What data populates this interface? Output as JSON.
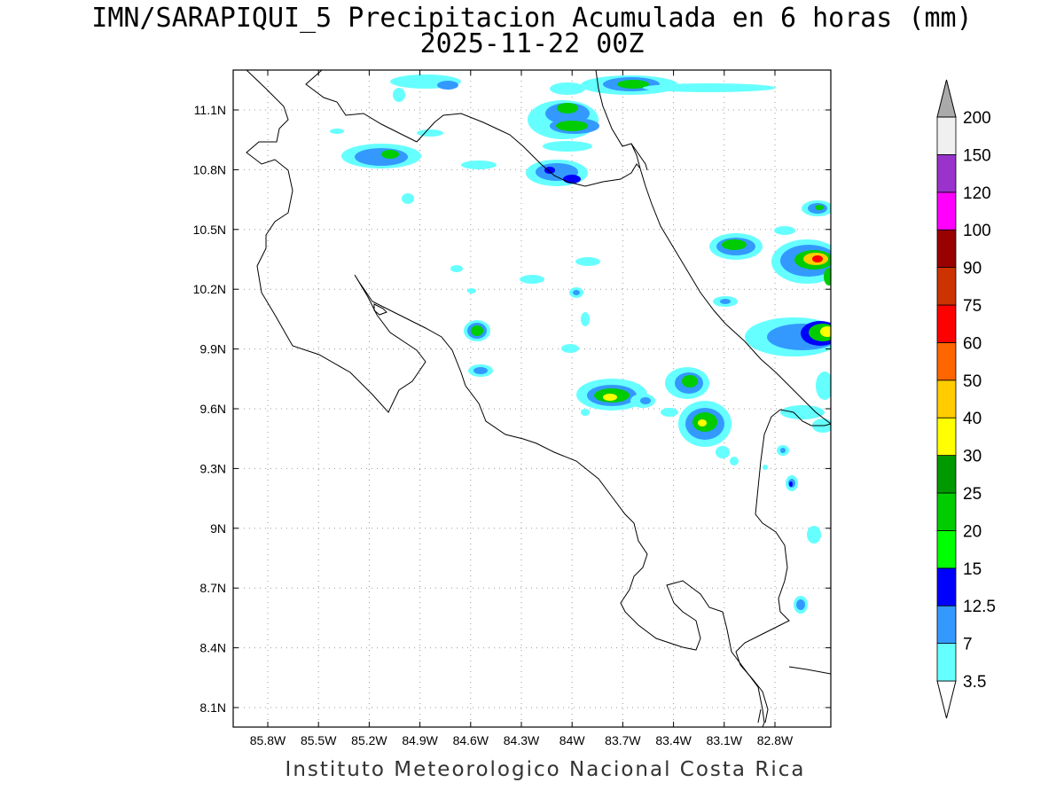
{
  "title_line1": "IMN/SARAPIQUI_5 Precipitacion Acumulada en 6 horas (mm)",
  "title_line2": "2025-11-22 00Z",
  "credit": "Instituto Meteorologico Nacional Costa Rica",
  "map": {
    "lon_range": [
      -86.0,
      -83.0
    ],
    "lat_range": [
      8.0,
      11.3
    ],
    "x_ticks": [
      {
        "value": -85.8,
        "label": "85.8W"
      },
      {
        "value": -85.5,
        "label": "85.5W"
      },
      {
        "value": -85.2,
        "label": "85.2W"
      },
      {
        "value": -84.9,
        "label": "84.9W"
      },
      {
        "value": -84.6,
        "label": "84.6W"
      },
      {
        "value": -84.3,
        "label": "84.3W"
      },
      {
        "value": -84.0,
        "label": "84W"
      },
      {
        "value": -83.7,
        "label": "83.7W"
      },
      {
        "value": -83.4,
        "label": "83.4W"
      },
      {
        "value": -83.1,
        "label": "83.1W"
      },
      {
        "value": -82.8,
        "label": "82.8W"
      }
    ],
    "y_ticks": [
      {
        "value": 8.1,
        "label": "8.1N"
      },
      {
        "value": 8.4,
        "label": "8.4N"
      },
      {
        "value": 8.7,
        "label": "8.7N"
      },
      {
        "value": 9.0,
        "label": "9N"
      },
      {
        "value": 9.3,
        "label": "9.3N"
      },
      {
        "value": 9.6,
        "label": "9.6N"
      },
      {
        "value": 9.9,
        "label": "9.9N"
      },
      {
        "value": 10.2,
        "label": "10.2N"
      },
      {
        "value": 10.5,
        "label": "10.5N"
      },
      {
        "value": 10.8,
        "label": "10.8N"
      },
      {
        "value": 11.1,
        "label": "11.1N"
      }
    ],
    "grid": "dotted"
  },
  "colorbar": {
    "levels": [
      {
        "label": "3.5",
        "color": "#66ffff"
      },
      {
        "label": "7",
        "color": "#3399ff"
      },
      {
        "label": "12.5",
        "color": "#0000ff"
      },
      {
        "label": "15",
        "color": "#00ff00"
      },
      {
        "label": "20",
        "color": "#00cc00"
      },
      {
        "label": "25",
        "color": "#009900"
      },
      {
        "label": "30",
        "color": "#ffff00"
      },
      {
        "label": "40",
        "color": "#ffcc00"
      },
      {
        "label": "50",
        "color": "#ff6600"
      },
      {
        "label": "60",
        "color": "#ff0000"
      },
      {
        "label": "75",
        "color": "#cc3300"
      },
      {
        "label": "90",
        "color": "#990000"
      },
      {
        "label": "100",
        "color": "#ff00ff"
      },
      {
        "label": "120",
        "color": "#9933cc"
      },
      {
        "label": "150",
        "color": "#f0f0f0"
      },
      {
        "label": "200",
        "color": "#aaaaaa"
      }
    ]
  }
}
